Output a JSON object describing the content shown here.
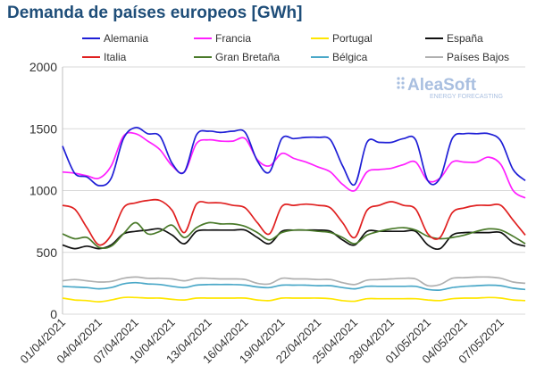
{
  "chart_data": {
    "type": "line",
    "title": "Demanda de países europeos [GWh]",
    "ylim": [
      0,
      2000
    ],
    "yticks": [
      0,
      500,
      1000,
      1500,
      2000
    ],
    "grid": "horizontal",
    "legend_position": "top",
    "xticks": [
      "01/04/2021",
      "04/04/2021",
      "07/04/2021",
      "10/04/2021",
      "13/04/2021",
      "16/04/2021",
      "19/04/2021",
      "22/04/2021",
      "25/04/2021",
      "28/04/2021",
      "01/05/2021",
      "04/05/2021",
      "07/05/2021"
    ],
    "x": [
      "01/04/2021",
      "02/04/2021",
      "03/04/2021",
      "04/04/2021",
      "05/04/2021",
      "06/04/2021",
      "07/04/2021",
      "08/04/2021",
      "09/04/2021",
      "10/04/2021",
      "11/04/2021",
      "12/04/2021",
      "13/04/2021",
      "14/04/2021",
      "15/04/2021",
      "16/04/2021",
      "17/04/2021",
      "18/04/2021",
      "19/04/2021",
      "20/04/2021",
      "21/04/2021",
      "22/04/2021",
      "23/04/2021",
      "24/04/2021",
      "25/04/2021",
      "26/04/2021",
      "27/04/2021",
      "28/04/2021",
      "29/04/2021",
      "30/04/2021",
      "01/05/2021",
      "02/05/2021",
      "03/05/2021",
      "04/05/2021",
      "05/05/2021",
      "06/05/2021",
      "07/05/2021",
      "08/05/2021",
      "09/05/2021"
    ],
    "series": [
      {
        "name": "Alemania",
        "color": "#1f1fd6",
        "values": [
          1360,
          1140,
          1110,
          1040,
          1100,
          1420,
          1510,
          1460,
          1440,
          1220,
          1150,
          1450,
          1480,
          1470,
          1480,
          1470,
          1240,
          1150,
          1420,
          1420,
          1430,
          1430,
          1410,
          1200,
          1050,
          1390,
          1390,
          1390,
          1420,
          1410,
          1080,
          1100,
          1420,
          1460,
          1460,
          1460,
          1400,
          1170,
          1080
        ]
      },
      {
        "name": "Francia",
        "color": "#ff1fff",
        "values": [
          1150,
          1140,
          1120,
          1100,
          1200,
          1440,
          1460,
          1400,
          1330,
          1200,
          1150,
          1380,
          1410,
          1400,
          1400,
          1420,
          1250,
          1200,
          1300,
          1260,
          1230,
          1190,
          1150,
          1050,
          1000,
          1150,
          1170,
          1180,
          1210,
          1230,
          1080,
          1100,
          1230,
          1230,
          1230,
          1270,
          1210,
          1000,
          940
        ]
      },
      {
        "name": "Portugal",
        "color": "#ffe600",
        "values": [
          130,
          115,
          110,
          100,
          115,
          135,
          135,
          130,
          130,
          120,
          115,
          130,
          130,
          130,
          130,
          130,
          115,
          110,
          130,
          130,
          130,
          130,
          125,
          110,
          105,
          125,
          125,
          125,
          125,
          125,
          115,
          110,
          125,
          130,
          130,
          135,
          130,
          115,
          110
        ]
      },
      {
        "name": "España",
        "color": "#111111",
        "values": [
          560,
          530,
          550,
          530,
          560,
          650,
          670,
          680,
          690,
          640,
          570,
          670,
          680,
          680,
          680,
          680,
          620,
          570,
          670,
          680,
          680,
          680,
          670,
          600,
          560,
          670,
          670,
          670,
          670,
          670,
          560,
          530,
          640,
          660,
          660,
          660,
          660,
          580,
          550
        ]
      },
      {
        "name": "Italia",
        "color": "#e02020",
        "values": [
          880,
          850,
          700,
          560,
          640,
          860,
          900,
          920,
          920,
          840,
          660,
          890,
          900,
          900,
          880,
          860,
          740,
          650,
          870,
          880,
          890,
          880,
          860,
          740,
          620,
          840,
          880,
          910,
          880,
          850,
          650,
          620,
          820,
          860,
          880,
          880,
          880,
          760,
          640
        ]
      },
      {
        "name": "Gran Bretaña",
        "color": "#4a7a2a",
        "values": [
          650,
          610,
          620,
          540,
          550,
          650,
          740,
          650,
          670,
          720,
          620,
          700,
          740,
          730,
          730,
          710,
          660,
          600,
          660,
          680,
          680,
          670,
          660,
          620,
          570,
          640,
          670,
          690,
          700,
          680,
          630,
          610,
          620,
          640,
          670,
          690,
          680,
          630,
          570
        ]
      },
      {
        "name": "Bélgica",
        "color": "#4aa8c8",
        "values": [
          225,
          220,
          215,
          205,
          215,
          245,
          255,
          245,
          240,
          225,
          215,
          235,
          240,
          240,
          240,
          235,
          220,
          215,
          235,
          235,
          235,
          230,
          230,
          215,
          205,
          225,
          225,
          225,
          225,
          225,
          200,
          195,
          215,
          225,
          230,
          235,
          230,
          210,
          200
        ]
      },
      {
        "name": "Países Bajos",
        "color": "#b0b0b0",
        "values": [
          270,
          280,
          270,
          260,
          265,
          290,
          300,
          290,
          290,
          285,
          270,
          290,
          290,
          285,
          285,
          280,
          250,
          245,
          290,
          285,
          285,
          280,
          280,
          255,
          240,
          275,
          280,
          285,
          290,
          285,
          230,
          240,
          290,
          295,
          300,
          300,
          290,
          260,
          250
        ]
      }
    ]
  },
  "watermark": {
    "brand": "AleaSoft",
    "tagline": "ENERGY FORECASTING"
  }
}
